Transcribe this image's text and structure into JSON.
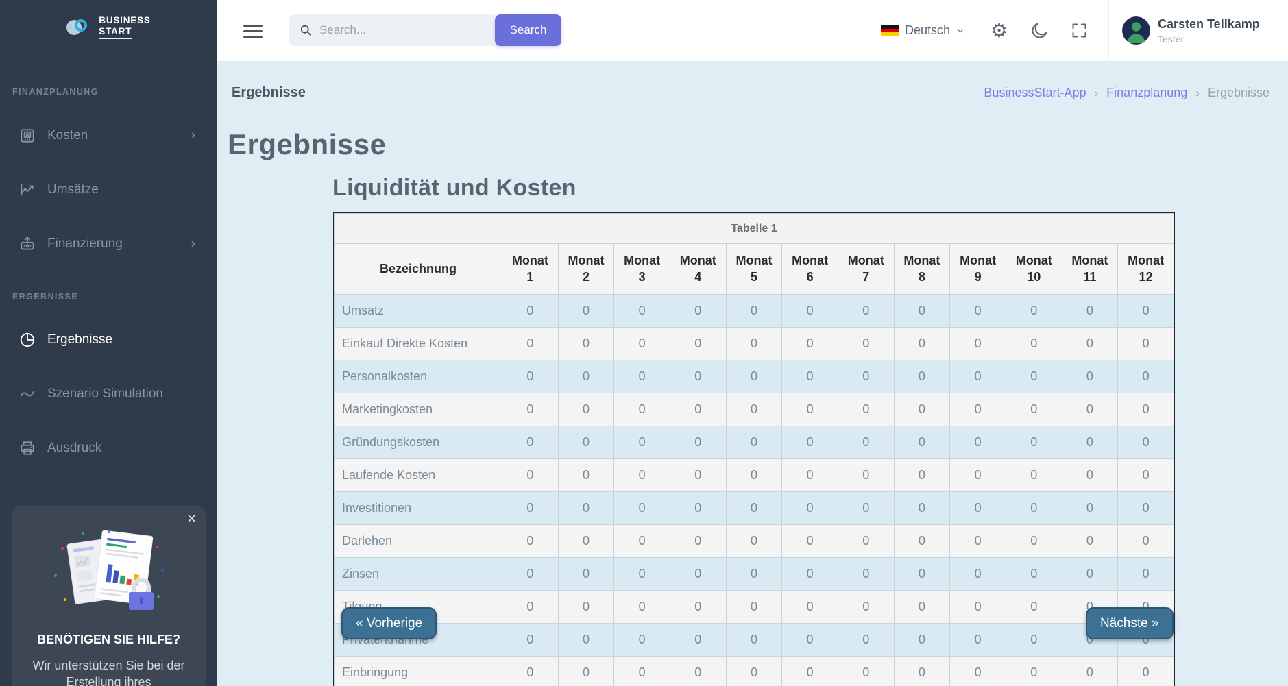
{
  "brand": {
    "line1": "BUSINESS",
    "line2": "START"
  },
  "topbar": {
    "search_placeholder": "Search...",
    "search_button_label": "Search",
    "language": "Deutsch",
    "icons": {
      "settings_glyph": "⚙"
    },
    "user": {
      "name": "Carsten Tellkamp",
      "role": "Tester"
    }
  },
  "sidebar": {
    "sections": [
      {
        "label": "FINANZPLANUNG",
        "items": [
          {
            "label": "Kosten",
            "icon": "cash-register-icon",
            "has_submenu": true,
            "active": false
          },
          {
            "label": "Umsätze",
            "icon": "line-chart-icon",
            "has_submenu": false,
            "active": false
          },
          {
            "label": "Finanzierung",
            "icon": "deposit-icon",
            "has_submenu": true,
            "active": false
          }
        ]
      },
      {
        "label": "ERGEBNISSE",
        "items": [
          {
            "label": "Ergebnisse",
            "icon": "pie-chart-icon",
            "has_submenu": false,
            "active": true
          },
          {
            "label": "Szenario Simulation",
            "icon": "trend-icon",
            "has_submenu": false,
            "active": false
          },
          {
            "label": "Ausdruck",
            "icon": "printer-icon",
            "has_submenu": false,
            "active": false
          }
        ]
      }
    ],
    "help_card": {
      "close_glyph": "×",
      "title": "BENÖTIGEN SIE HILFE?",
      "text": "Wir unterstützen Sie bei der Erstellung ihres"
    }
  },
  "page": {
    "title": "Ergebnisse",
    "breadcrumb": [
      {
        "label": "BusinessStart-App"
      },
      {
        "label": "Finanzplanung"
      },
      {
        "label": "Ergebnisse"
      }
    ],
    "breadcrumb_separator": "›",
    "heading": "Ergebnisse",
    "subheading": "Liquidität und Kosten"
  },
  "table": {
    "caption": "Tabelle 1",
    "first_column_header": "Bezeichnung",
    "month_label": "Monat",
    "months": [
      "1",
      "2",
      "3",
      "4",
      "5",
      "6",
      "7",
      "8",
      "9",
      "10",
      "11",
      "12"
    ],
    "rows": [
      {
        "label": "Umsatz",
        "values": [
          0,
          0,
          0,
          0,
          0,
          0,
          0,
          0,
          0,
          0,
          0,
          0
        ]
      },
      {
        "label": "Einkauf Direkte Kosten",
        "values": [
          0,
          0,
          0,
          0,
          0,
          0,
          0,
          0,
          0,
          0,
          0,
          0
        ]
      },
      {
        "label": "Personalkosten",
        "values": [
          0,
          0,
          0,
          0,
          0,
          0,
          0,
          0,
          0,
          0,
          0,
          0
        ]
      },
      {
        "label": "Marketingkosten",
        "values": [
          0,
          0,
          0,
          0,
          0,
          0,
          0,
          0,
          0,
          0,
          0,
          0
        ]
      },
      {
        "label": "Gründungskosten",
        "values": [
          0,
          0,
          0,
          0,
          0,
          0,
          0,
          0,
          0,
          0,
          0,
          0
        ]
      },
      {
        "label": "Laufende Kosten",
        "values": [
          0,
          0,
          0,
          0,
          0,
          0,
          0,
          0,
          0,
          0,
          0,
          0
        ]
      },
      {
        "label": "Investitionen",
        "values": [
          0,
          0,
          0,
          0,
          0,
          0,
          0,
          0,
          0,
          0,
          0,
          0
        ]
      },
      {
        "label": "Darlehen",
        "values": [
          0,
          0,
          0,
          0,
          0,
          0,
          0,
          0,
          0,
          0,
          0,
          0
        ]
      },
      {
        "label": "Zinsen",
        "values": [
          0,
          0,
          0,
          0,
          0,
          0,
          0,
          0,
          0,
          0,
          0,
          0
        ]
      },
      {
        "label": "Tilgung",
        "values": [
          0,
          0,
          0,
          0,
          0,
          0,
          0,
          0,
          0,
          0,
          0,
          0
        ]
      },
      {
        "label": "Privatentnahme",
        "values": [
          0,
          0,
          0,
          0,
          0,
          0,
          0,
          0,
          0,
          0,
          0,
          0
        ]
      },
      {
        "label": "Einbringung",
        "values": [
          0,
          0,
          0,
          0,
          0,
          0,
          0,
          0,
          0,
          0,
          0,
          0
        ]
      }
    ]
  },
  "pagination": {
    "prev_label": "« Vorherige",
    "next_label": "Nächste »"
  },
  "colors": {
    "accent": "#6a6fdc",
    "link": "#7c80e2",
    "pagination_button": "#3d7194",
    "sidebar_bg": "#2f3a4a",
    "content_bg": "#dfeef5",
    "row_blue": "#d9eaf3",
    "row_gray": "#f4f4f5"
  }
}
